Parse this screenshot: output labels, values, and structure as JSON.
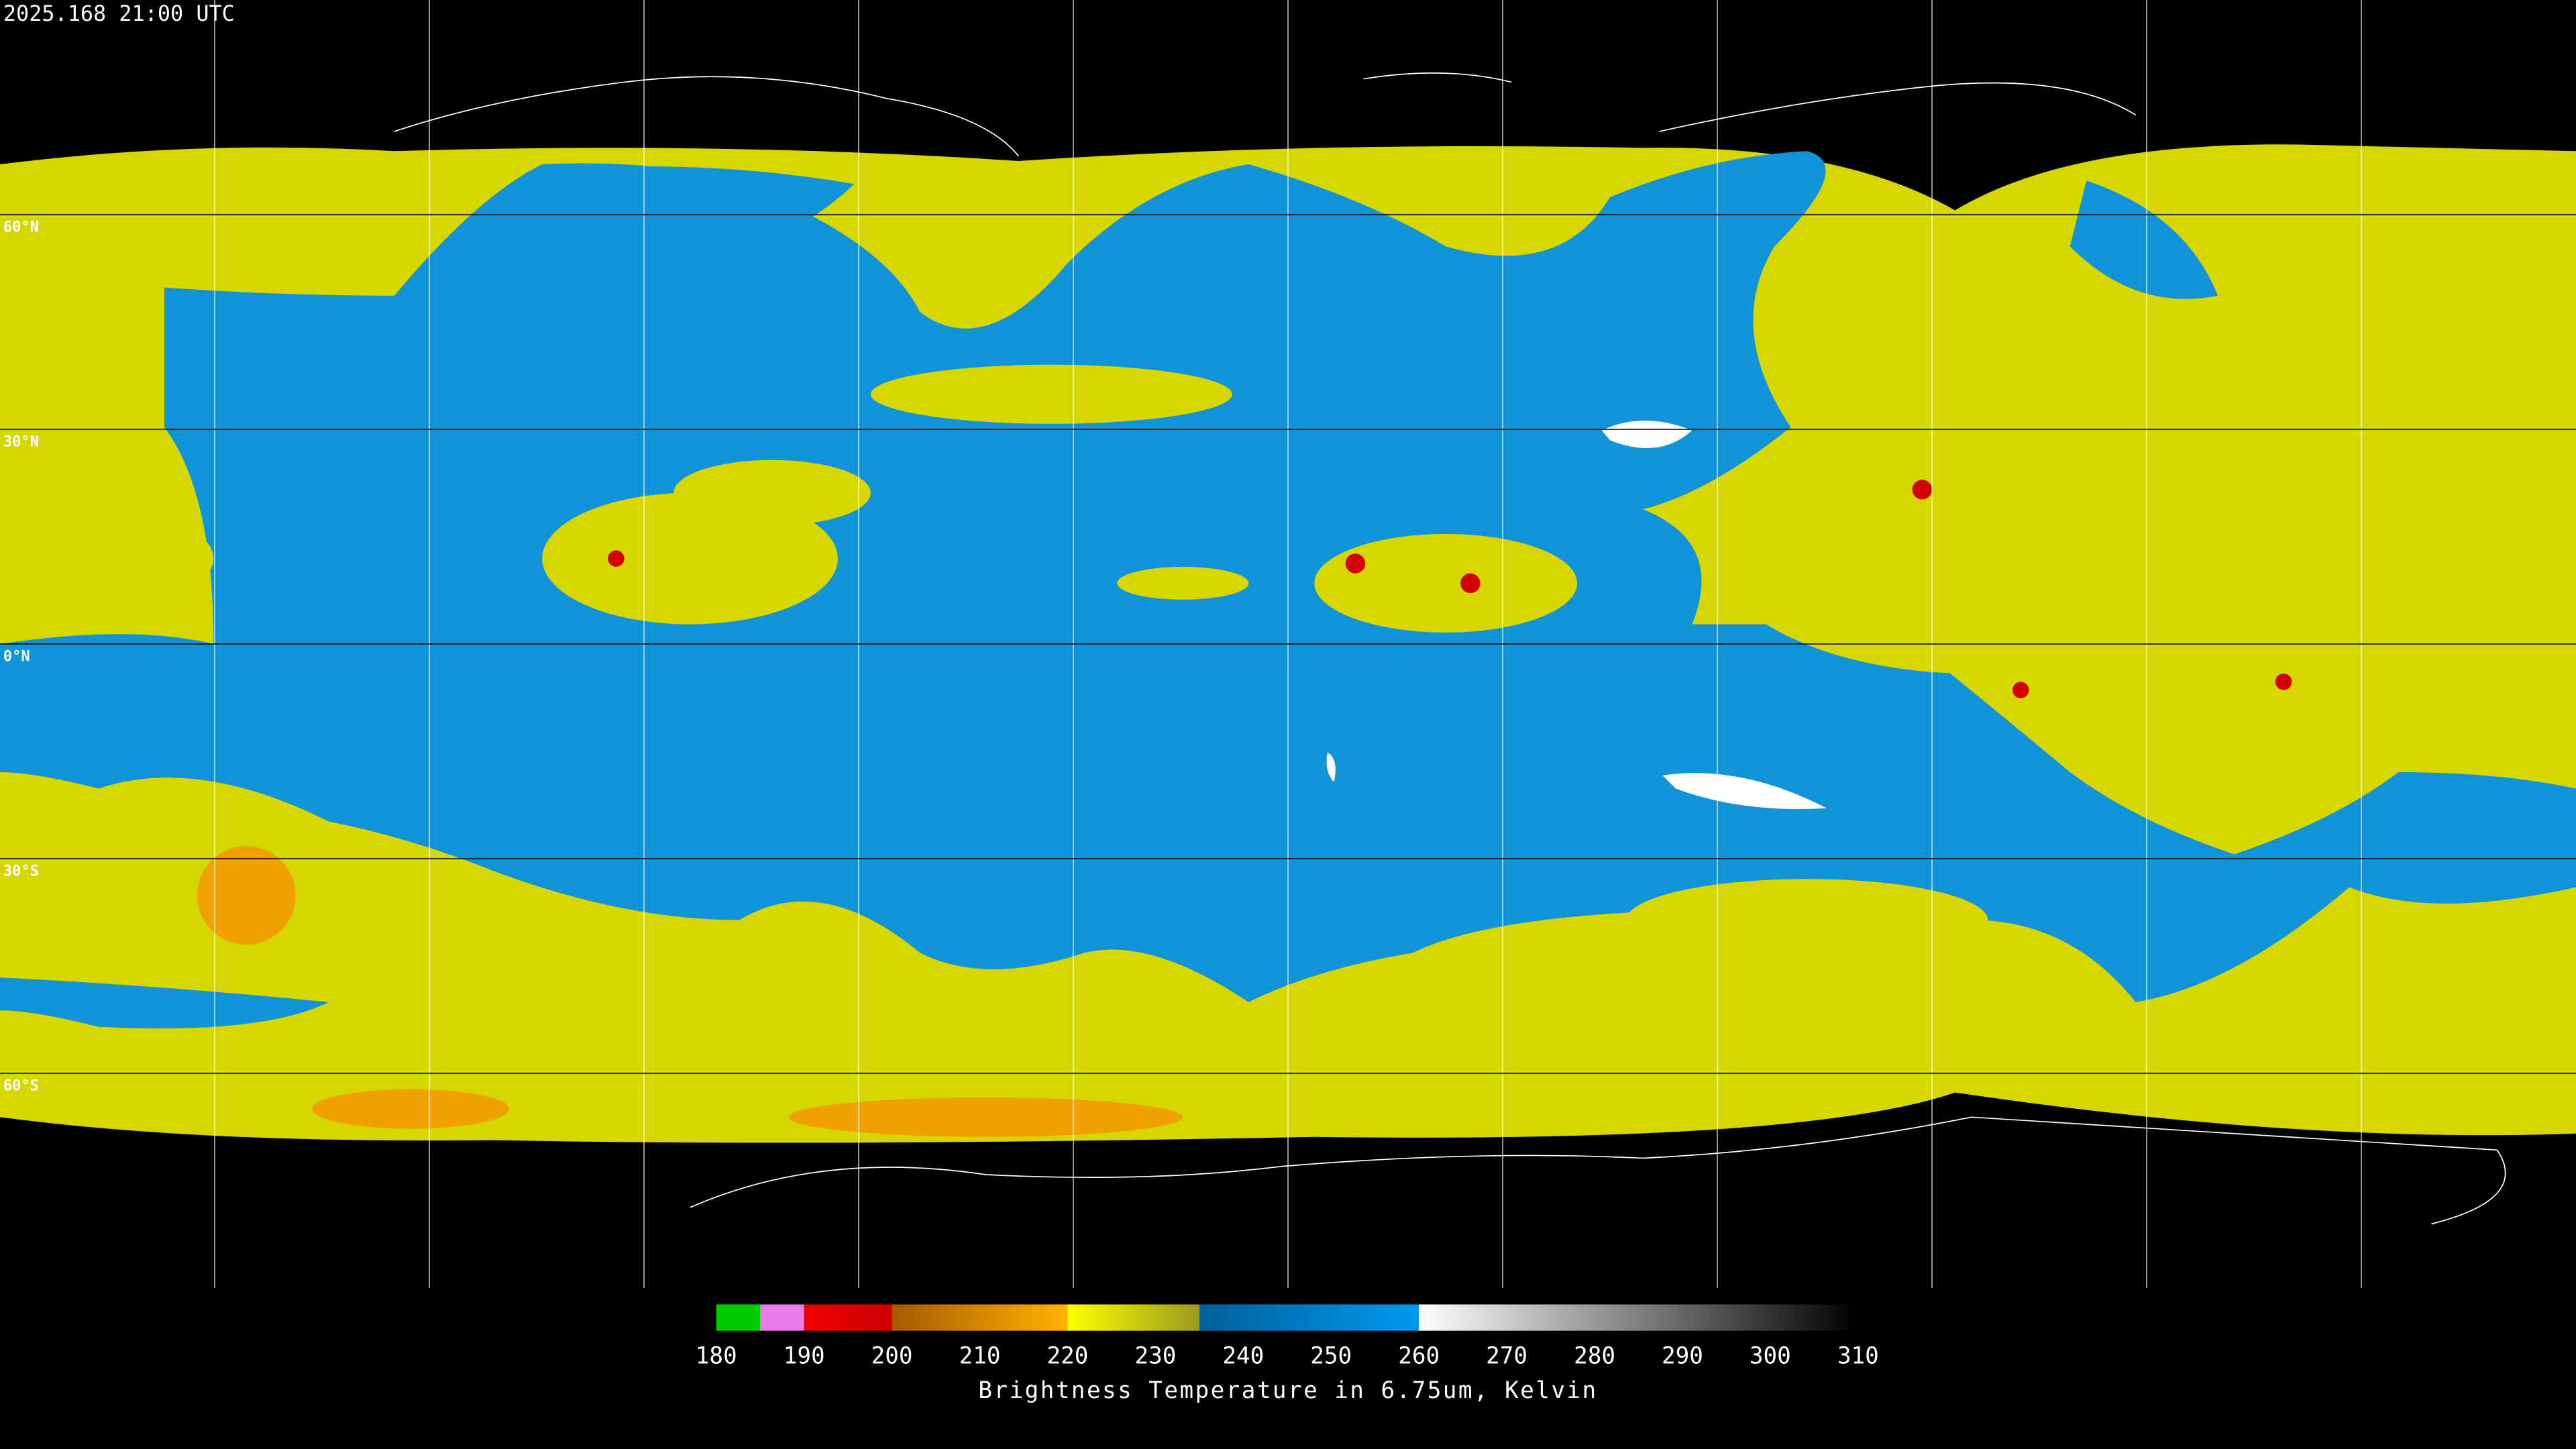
{
  "map": {
    "timestamp": "2025.168 21:00 UTC",
    "lat_lines": [
      {
        "value": 60,
        "label": "60°N"
      },
      {
        "value": 30,
        "label": "30°N"
      },
      {
        "value": 0,
        "label": "0°N"
      },
      {
        "value": -30,
        "label": "30°S"
      },
      {
        "value": -60,
        "label": "60°S"
      }
    ]
  },
  "colorbar": {
    "lim": [
      180,
      310
    ],
    "ticks": [
      180,
      190,
      200,
      210,
      220,
      230,
      240,
      250,
      260,
      270,
      280,
      290,
      300,
      310
    ],
    "stops": [
      [
        180,
        "#00cc00"
      ],
      [
        185,
        "#00cc00"
      ],
      [
        185,
        "#e87de8"
      ],
      [
        190,
        "#e87de8"
      ],
      [
        190,
        "#ee0000"
      ],
      [
        200,
        "#cc0000"
      ],
      [
        200,
        "#a65a00"
      ],
      [
        220,
        "#ffb400"
      ],
      [
        220,
        "#ffff00"
      ],
      [
        235,
        "#9a9a20"
      ],
      [
        235,
        "#00609a"
      ],
      [
        260,
        "#0099ee"
      ],
      [
        260,
        "#ffffff"
      ],
      [
        310,
        "#000000"
      ]
    ],
    "title": "Brightness Temperature in 6.75um, Kelvin"
  }
}
